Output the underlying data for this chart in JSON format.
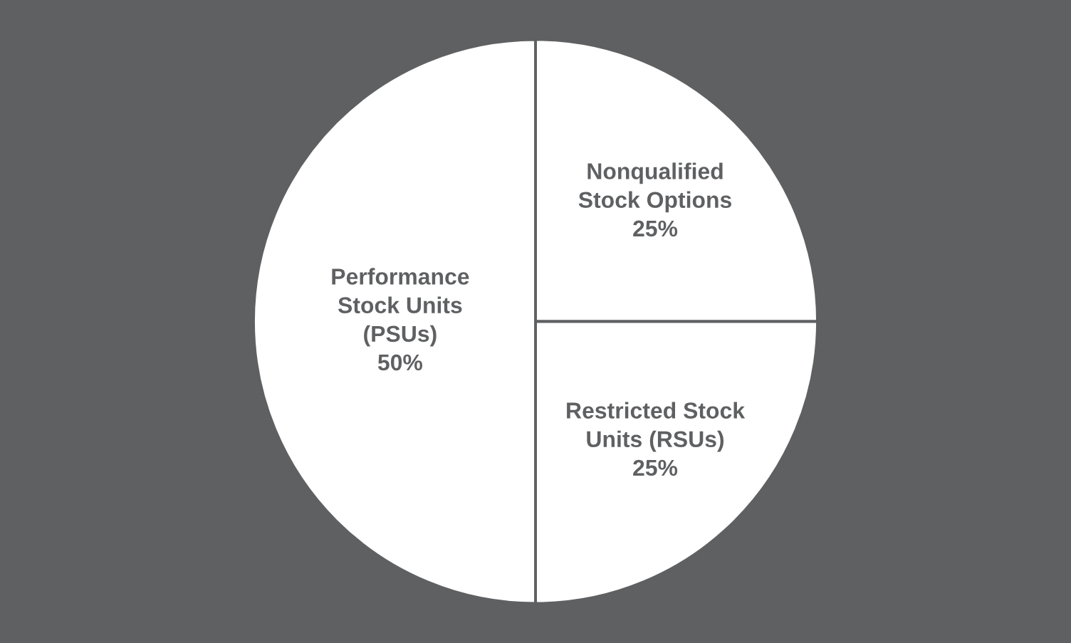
{
  "chart_data": {
    "type": "pie",
    "categories": [
      "Nonqualified\nStock Options",
      "Restricted Stock\nUnits (RSUs)",
      "Performance\nStock Units\n(PSUs)"
    ],
    "values": [
      25,
      25,
      50
    ],
    "value_labels": [
      "25%",
      "25%",
      "50%"
    ],
    "colors": [
      "#ffffff",
      "#ffffff",
      "#ffffff"
    ]
  }
}
